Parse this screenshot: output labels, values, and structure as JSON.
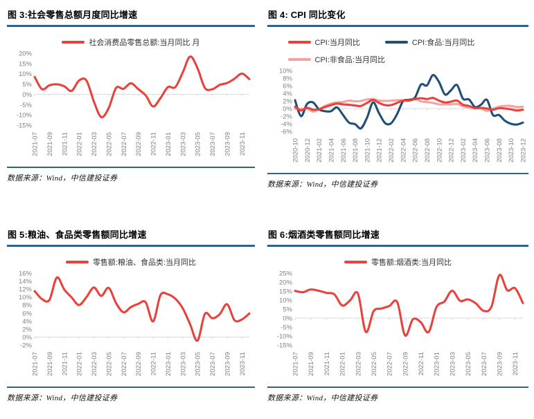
{
  "styles": {
    "accent_rule": "#2E618E",
    "axis_text": "#808080",
    "grid": "#D9D9D9",
    "red": "#E8423D",
    "dark_blue": "#1F4E79",
    "pink": "#F2A2A1",
    "legend_text": "#333333"
  },
  "chart_data": [
    {
      "type": "line",
      "title": "图 3:社会零售总额月度同比增速",
      "source": "数据来源：Wind，中信建投证券",
      "legend_position": "top",
      "grid": "zero-axis-only",
      "ylim": [
        -15,
        20
      ],
      "y_tick_step": 5,
      "tick_every": 2,
      "x": [
        "2021-07",
        "2021-08",
        "2021-09",
        "2021-10",
        "2021-11",
        "2021-12",
        "2022-01",
        "2022-02",
        "2022-03",
        "2022-04",
        "2022-05",
        "2022-06",
        "2022-07",
        "2022-08",
        "2022-09",
        "2022-10",
        "2022-11",
        "2022-12",
        "2023-01",
        "2023-02",
        "2023-03",
        "2023-04",
        "2023-05",
        "2023-06",
        "2023-07",
        "2023-08",
        "2023-09",
        "2023-10",
        "2023-11",
        "2023-12"
      ],
      "series": [
        {
          "name": "社会消费品零售总额:当月同比 月",
          "color": "#E8423D",
          "values": [
            8.5,
            2.5,
            4.4,
            4.9,
            3.9,
            1.7,
            6.7,
            6.7,
            -3.5,
            -11.1,
            -6.7,
            3.1,
            2.7,
            5.4,
            2.5,
            -0.5,
            -5.9,
            -1.8,
            3.5,
            3.5,
            10.6,
            18.4,
            12.7,
            3.1,
            2.5,
            4.6,
            5.5,
            7.6,
            10.1,
            7.4
          ]
        }
      ]
    },
    {
      "type": "line",
      "title": "图 4: CPI 同比变化",
      "source": "数据来源：Wind，中信建投证券",
      "legend_position": "top",
      "grid": "zero-axis-only",
      "ylim": [
        -6,
        10
      ],
      "y_tick_step": 2,
      "tick_every": 2,
      "x": [
        "2020-10",
        "2020-11",
        "2020-12",
        "2021-01",
        "2021-02",
        "2021-03",
        "2021-04",
        "2021-05",
        "2021-06",
        "2021-07",
        "2021-08",
        "2021-09",
        "2021-10",
        "2021-11",
        "2021-12",
        "2022-01",
        "2022-02",
        "2022-03",
        "2022-04",
        "2022-05",
        "2022-06",
        "2022-07",
        "2022-08",
        "2022-09",
        "2022-10",
        "2022-11",
        "2022-12",
        "2023-01",
        "2023-02",
        "2023-03",
        "2023-04",
        "2023-05",
        "2023-06",
        "2023-07",
        "2023-08",
        "2023-09",
        "2023-10",
        "2023-11",
        "2023-12"
      ],
      "series": [
        {
          "name": "CPI:当月同比",
          "color": "#E8423D",
          "values": [
            0.5,
            -0.5,
            0.2,
            -0.3,
            -0.2,
            0.4,
            0.9,
            1.3,
            1.1,
            1.0,
            0.8,
            0.7,
            1.5,
            2.3,
            1.5,
            0.9,
            0.9,
            1.5,
            2.1,
            2.1,
            2.5,
            2.7,
            2.5,
            2.8,
            2.1,
            1.6,
            1.8,
            2.1,
            1.0,
            0.7,
            0.1,
            0.2,
            0.0,
            -0.3,
            0.1,
            0.0,
            -0.2,
            -0.5,
            -0.3
          ]
        },
        {
          "name": "CPI:食品:当月同比",
          "color": "#1F4E79",
          "values": [
            2.2,
            -2.0,
            1.2,
            1.6,
            -0.2,
            -0.7,
            -0.7,
            0.3,
            -1.7,
            -3.7,
            -4.1,
            -5.2,
            -2.4,
            1.6,
            -1.2,
            -3.8,
            -3.9,
            -1.5,
            1.9,
            2.3,
            2.9,
            6.3,
            6.1,
            8.8,
            7.0,
            3.7,
            4.8,
            6.2,
            2.6,
            2.4,
            0.4,
            1.0,
            2.3,
            -1.7,
            -1.7,
            -3.2,
            -4.0,
            -4.2,
            -3.7
          ]
        },
        {
          "name": "CPI:非食品:当月同比",
          "color": "#F2A2A1",
          "values": [
            0.0,
            -0.1,
            0.0,
            -0.8,
            -0.2,
            0.7,
            1.3,
            1.6,
            1.7,
            2.1,
            1.9,
            2.0,
            2.4,
            2.5,
            2.1,
            2.0,
            2.1,
            2.2,
            2.2,
            2.1,
            2.5,
            1.9,
            1.7,
            1.5,
            1.1,
            1.1,
            1.1,
            1.2,
            0.6,
            0.3,
            0.1,
            0.0,
            -0.6,
            0.0,
            0.5,
            0.7,
            0.7,
            0.4,
            0.5
          ]
        }
      ]
    },
    {
      "type": "line",
      "title": "图 5:粮油、食品类零售额同比增速",
      "source": "数据来源：Wind，中信建投证券",
      "legend_position": "top",
      "grid": "zero-axis-only",
      "ylim": [
        -2,
        16
      ],
      "y_tick_step": 2,
      "tick_every": 2,
      "x": [
        "2021-07",
        "2021-08",
        "2021-09",
        "2021-10",
        "2021-11",
        "2021-12",
        "2022-01",
        "2022-02",
        "2022-03",
        "2022-04",
        "2022-05",
        "2022-06",
        "2022-07",
        "2022-08",
        "2022-09",
        "2022-10",
        "2022-11",
        "2022-12",
        "2023-01",
        "2023-02",
        "2023-03",
        "2023-04",
        "2023-05",
        "2023-06",
        "2023-07",
        "2023-08",
        "2023-09",
        "2023-10",
        "2023-11",
        "2023-12"
      ],
      "series": [
        {
          "name": "零售额:粮油、食品类:当月同比",
          "color": "#E8423D",
          "values": [
            11.5,
            9.5,
            9.3,
            14.9,
            11.9,
            9.9,
            8.0,
            10.0,
            12.4,
            10.3,
            12.3,
            8.5,
            6.2,
            7.5,
            8.3,
            8.7,
            3.9,
            10.5,
            10.7,
            9.6,
            7.2,
            3.2,
            -0.9,
            5.8,
            4.7,
            5.7,
            8.2,
            4.2,
            4.4,
            5.9
          ]
        }
      ]
    },
    {
      "type": "line",
      "title": "图 6:烟酒类零售额同比增速",
      "source": "数据来源：Wind，中信建投证券",
      "legend_position": "top",
      "grid": "zero-axis-only",
      "ylim": [
        -15,
        25
      ],
      "y_tick_step": 5,
      "tick_every": 2,
      "x": [
        "2021-07",
        "2021-08",
        "2021-09",
        "2021-10",
        "2021-11",
        "2021-12",
        "2022-01",
        "2022-02",
        "2022-03",
        "2022-04",
        "2022-05",
        "2022-06",
        "2022-07",
        "2022-08",
        "2022-09",
        "2022-10",
        "2022-11",
        "2022-12",
        "2023-01",
        "2023-02",
        "2023-03",
        "2023-04",
        "2023-05",
        "2023-06",
        "2023-07",
        "2023-08",
        "2023-09",
        "2023-10",
        "2023-11",
        "2023-12"
      ],
      "series": [
        {
          "name": "零售额:烟酒类:当月同比",
          "color": "#E8423D",
          "values": [
            15.1,
            14.4,
            15.9,
            15.2,
            14.0,
            13.2,
            7.0,
            9.8,
            13.6,
            -7.7,
            3.8,
            5.3,
            6.7,
            8.9,
            -9.6,
            -0.7,
            -2.3,
            -7.8,
            6.1,
            9.2,
            15.2,
            9.6,
            10.4,
            8.2,
            4.0,
            6.4,
            23.9,
            15.5,
            16.6,
            8.3
          ]
        }
      ]
    }
  ]
}
